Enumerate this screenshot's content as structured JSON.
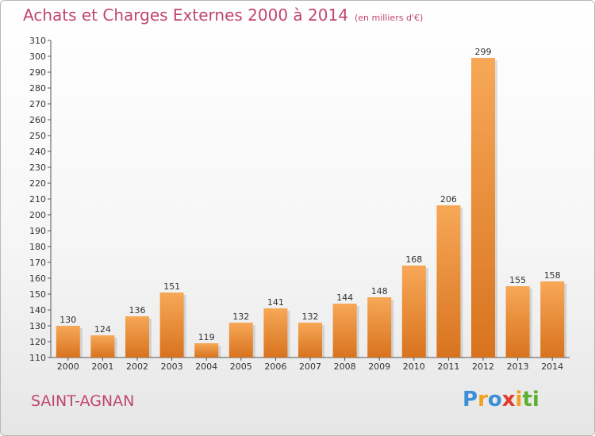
{
  "header": {
    "title": "Achats et Charges Externes 2000 à 2014",
    "unit": "(en milliers d'€)"
  },
  "footer": {
    "commune": "SAINT-AGNAN"
  },
  "logo": {
    "letters": [
      "P",
      "r",
      "o",
      "x",
      "i",
      "t",
      "i"
    ],
    "colors": [
      "#3a8fd6",
      "#f2a020",
      "#3a8fd6",
      "#e23a2a",
      "#f2a020",
      "#5cb030",
      "#5cb030"
    ]
  },
  "chart_data": {
    "type": "bar",
    "categories": [
      "2000",
      "2001",
      "2002",
      "2003",
      "2004",
      "2005",
      "2006",
      "2007",
      "2008",
      "2009",
      "2010",
      "2011",
      "2012",
      "2013",
      "2014"
    ],
    "values": [
      130,
      124,
      136,
      151,
      119,
      132,
      141,
      132,
      144,
      148,
      168,
      206,
      299,
      155,
      158
    ],
    "data_labels": [
      "130",
      "124",
      "136",
      "151",
      "119",
      "132",
      "141",
      "132",
      "144",
      "148",
      "168",
      "206",
      "299",
      "155",
      "158"
    ],
    "ylim": [
      110,
      310
    ],
    "yticks": [
      "110",
      "120",
      "130",
      "140",
      "150",
      "160",
      "170",
      "180",
      "190",
      "200",
      "210",
      "220",
      "230",
      "240",
      "250",
      "260",
      "270",
      "280",
      "290",
      "300",
      "310"
    ],
    "grid": false,
    "bar_color_light": "#f7a857",
    "bar_color_dark": "#d8731e"
  }
}
